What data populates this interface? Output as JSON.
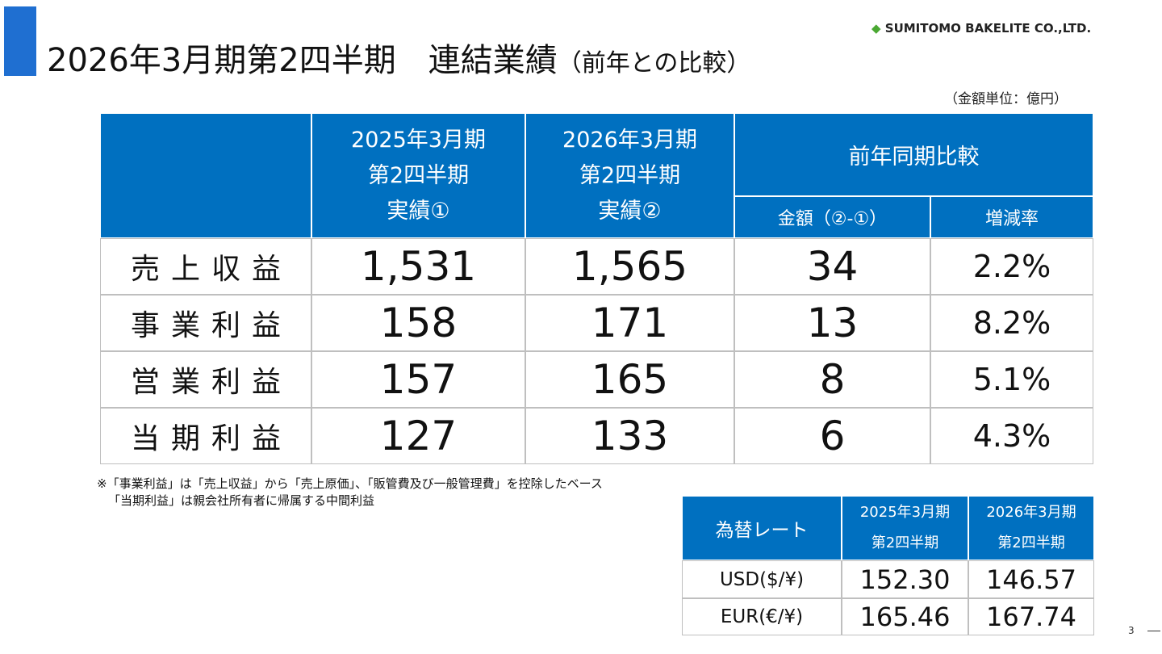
{
  "header": {
    "title": "2026年3月期第2四半期　連結業績",
    "subtitle": "（前年との比較）",
    "logo": "SUMITOMO BAKELITE CO.,LTD."
  },
  "unit_note": "（金額単位：億円）",
  "table": {
    "columns": [
      [
        "2025年3月期",
        "第2四半期",
        "実績①"
      ],
      [
        "2026年3月期",
        "第2四半期",
        "実績②"
      ]
    ],
    "group": "前年同期比較",
    "subcolumns": [
      "金額（②-①）",
      "増減率"
    ],
    "rows": [
      [
        "売上収益",
        "1,531",
        "1,565",
        "34",
        "2.2%"
      ],
      [
        "事業利益",
        "158",
        "171",
        "13",
        "8.2%"
      ],
      [
        "営業利益",
        "157",
        "165",
        "8",
        "5.1%"
      ],
      [
        "当期利益",
        "127",
        "133",
        "6",
        "4.3%"
      ]
    ]
  },
  "notes": [
    "※「事業利益」は「売上収益」から「売上原価」、「販管費及び一般管理費」を控除したベース",
    "「当期利益」は親会社所有者に帰属する中間利益"
  ],
  "fx_table": {
    "header": "為替レート",
    "columns": [
      [
        "2025年3月期",
        "第2四半期"
      ],
      [
        "2026年3月期",
        "第2四半期"
      ]
    ],
    "rows": [
      [
        "USD($/¥)",
        "152.30",
        "146.57"
      ],
      [
        "EUR(€/¥)",
        "165.46",
        "167.74"
      ]
    ]
  },
  "page_number": "3"
}
